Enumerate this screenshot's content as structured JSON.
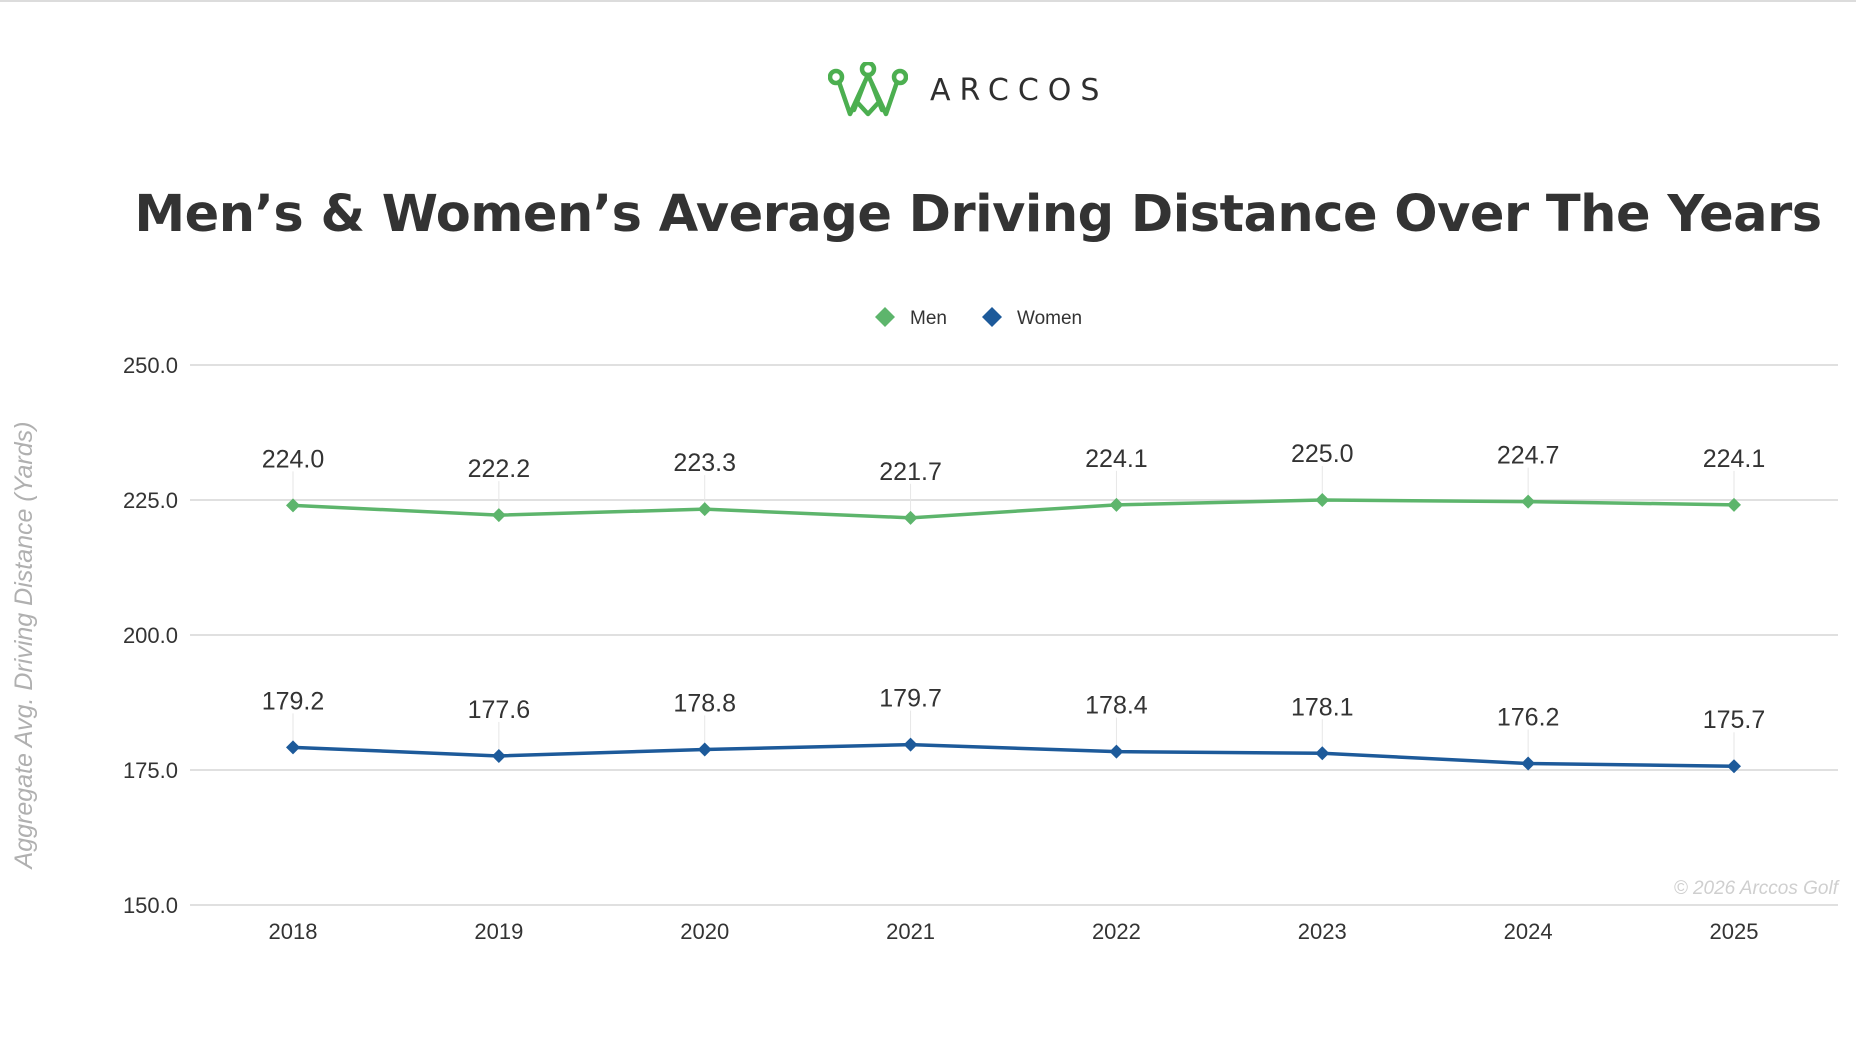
{
  "brand": {
    "name": "ARCCOS",
    "color": "#4caf50"
  },
  "chart_data": {
    "type": "line",
    "title": "Men’s & Women’s Average Driving Distance Over The Years",
    "ylabel": "Aggregate Avg. Driving Distance (Yards)",
    "xlabel": "",
    "x": [
      "2018",
      "2019",
      "2020",
      "2021",
      "2022",
      "2023",
      "2024",
      "2025"
    ],
    "ylim": [
      150,
      250
    ],
    "yticks": [
      "150.0",
      "175.0",
      "200.0",
      "225.0",
      "250.0"
    ],
    "grid": true,
    "legend_position": "top",
    "series": [
      {
        "name": "Men",
        "color": "#5db56c",
        "values": [
          224.0,
          222.2,
          223.3,
          221.7,
          224.1,
          225.0,
          224.7,
          224.1
        ],
        "labels": [
          "224.0",
          "222.2",
          "223.3",
          "221.7",
          "224.1",
          "225.0",
          "224.7",
          "224.1"
        ]
      },
      {
        "name": "Women",
        "color": "#1d5a9a",
        "values": [
          179.2,
          177.6,
          178.8,
          179.7,
          178.4,
          178.1,
          176.2,
          175.7
        ],
        "labels": [
          "179.2",
          "177.6",
          "178.8",
          "179.7",
          "178.4",
          "178.1",
          "176.2",
          "175.7"
        ]
      }
    ],
    "watermark": "© 2026 Arccos Golf"
  }
}
